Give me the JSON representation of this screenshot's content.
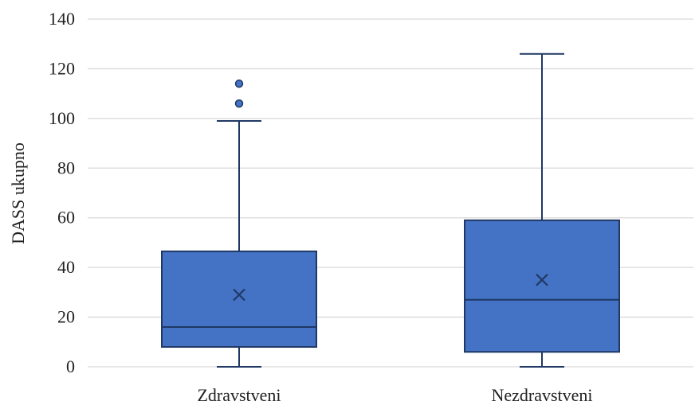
{
  "chart_data": {
    "type": "boxplot",
    "title": "",
    "xlabel": "",
    "ylabel": "DASS ukupno",
    "ylim": [
      0,
      140
    ],
    "yticks": [
      0,
      20,
      40,
      60,
      80,
      100,
      120,
      140
    ],
    "grid": true,
    "legend": "none",
    "categories": [
      "Zdravstveni",
      "Nezdravstveni"
    ],
    "boxes": [
      {
        "category": "Zdravstveni",
        "whisker_low": 0,
        "q1": 8,
        "median": 16,
        "q3": 46.5,
        "whisker_high": 99,
        "mean": 29,
        "outliers": [
          106,
          114
        ]
      },
      {
        "category": "Nezdravstveni",
        "whisker_low": 0,
        "q1": 6,
        "median": 27,
        "q3": 59,
        "whisker_high": 126,
        "mean": 35,
        "outliers": []
      }
    ],
    "colors": {
      "box_fill": "#4472C4",
      "box_stroke": "#1F3864",
      "grid": "#D9D9D9",
      "text": "#222222"
    }
  }
}
